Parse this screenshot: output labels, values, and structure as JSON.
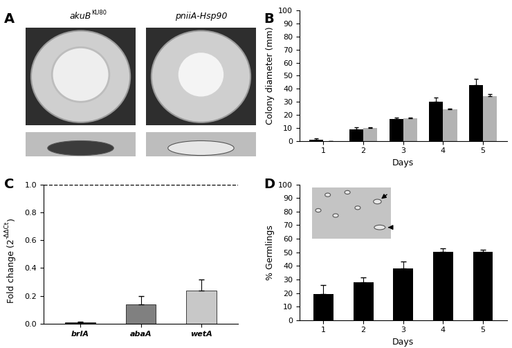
{
  "chart_data": [
    {
      "type": "image",
      "panel": "A",
      "labels": [
        {
          "text": "akuB",
          "superscript": "KU80"
        },
        {
          "text": "pniiA-Hsp90"
        }
      ]
    },
    {
      "type": "bar",
      "panel": "B",
      "categories": [
        "1",
        "2",
        "3",
        "4",
        "5"
      ],
      "x_label": "Days",
      "y_label": "Colony diameter (mm)",
      "ylim": [
        0,
        100
      ],
      "yticks": [
        0,
        10,
        20,
        30,
        40,
        50,
        60,
        70,
        80,
        90,
        100
      ],
      "series": [
        {
          "color": "#000000",
          "values": [
            1,
            9,
            17,
            30,
            43
          ],
          "errors": [
            1,
            1.5,
            1,
            3,
            4.5
          ]
        },
        {
          "color": "#b3b3b3",
          "values": [
            0,
            10,
            17.5,
            24.5,
            34.5
          ],
          "errors": [
            0,
            0.5,
            0.5,
            0.5,
            1.5
          ]
        }
      ]
    },
    {
      "type": "bar",
      "panel": "C",
      "categories": [
        "brlA",
        "abaA",
        "wetA"
      ],
      "y_label": {
        "text": "Fold change (2",
        "superscript": "-ΔΔCt",
        "after": ")"
      },
      "values": [
        0.01,
        0.14,
        0.24
      ],
      "errors": [
        0.005,
        0.06,
        0.075
      ],
      "colors": [
        "#000000",
        "#808080",
        "#c8c8c8"
      ],
      "reference": 1.0,
      "ylim": [
        0.0,
        1.0
      ],
      "yticks": [
        0.0,
        0.2,
        0.4,
        0.6,
        0.8,
        1.0
      ]
    },
    {
      "type": "bar",
      "panel": "D",
      "categories": [
        "1",
        "2",
        "3",
        "4",
        "5"
      ],
      "x_label": "Days",
      "y_label": "% Germlings",
      "values": [
        19,
        28,
        38,
        50.5,
        50.5
      ],
      "errors": [
        7,
        3.5,
        5,
        2.5,
        1.5
      ],
      "color": "#000000",
      "ylim": [
        0,
        100
      ],
      "yticks": [
        0,
        10,
        20,
        30,
        40,
        50,
        60,
        70,
        80,
        90,
        100
      ]
    }
  ]
}
